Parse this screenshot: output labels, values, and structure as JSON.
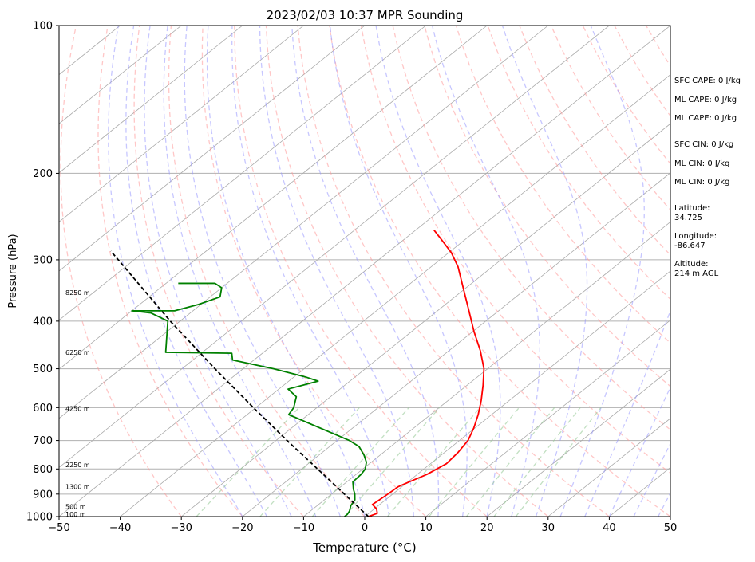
{
  "chart_data": {
    "type": "skew-t log-p sounding",
    "title": "2023/02/03 10:37 MPR Sounding",
    "xlabel": "Temperature (°C)",
    "ylabel": "Pressure (hPa)",
    "xlim": [
      -50,
      50
    ],
    "ylim": [
      1000,
      100
    ],
    "y_scale": "log",
    "x_ticks": [
      "−50",
      "−40",
      "−30",
      "−20",
      "−10",
      "0",
      "10",
      "20",
      "30",
      "40",
      "50"
    ],
    "x_tick_values": [
      -50,
      -40,
      -30,
      -20,
      -10,
      0,
      10,
      20,
      30,
      40,
      50
    ],
    "y_ticks": [
      "100",
      "200",
      "300",
      "400",
      "500",
      "600",
      "700",
      "800",
      "900",
      "1000"
    ],
    "y_tick_values": [
      100,
      200,
      300,
      400,
      500,
      600,
      700,
      800,
      900,
      1000
    ],
    "grid": "horizontal pressure lines plus skewed isotherms",
    "colors": {
      "temperature": "#ff0000",
      "dewpoint": "#008000",
      "parcel": "#000000",
      "dry_adiabats": "#ff9999",
      "moist_adiabats": "#9999ff",
      "mixing_ratio": "#99cc99",
      "isotherms": "#aaaaaa"
    },
    "series": [
      {
        "id": "temperature",
        "points": [
          {
            "p": 1000,
            "t": 0.6
          },
          {
            "p": 985,
            "t": 1.4
          },
          {
            "p": 965,
            "t": 0.4
          },
          {
            "p": 945,
            "t": -1.2
          },
          {
            "p": 925,
            "t": -1.0
          },
          {
            "p": 900,
            "t": -0.8
          },
          {
            "p": 870,
            "t": -0.6
          },
          {
            "p": 850,
            "t": 0.2
          },
          {
            "p": 820,
            "t": 1.6
          },
          {
            "p": 780,
            "t": 2.6
          },
          {
            "p": 740,
            "t": 2.2
          },
          {
            "p": 700,
            "t": 1.4
          },
          {
            "p": 660,
            "t": -0.2
          },
          {
            "p": 620,
            "t": -2.2
          },
          {
            "p": 580,
            "t": -4.6
          },
          {
            "p": 540,
            "t": -7.4
          },
          {
            "p": 500,
            "t": -10.6
          },
          {
            "p": 460,
            "t": -14.8
          },
          {
            "p": 420,
            "t": -19.8
          },
          {
            "p": 380,
            "t": -25.0
          },
          {
            "p": 340,
            "t": -30.8
          },
          {
            "p": 310,
            "t": -35.6
          },
          {
            "p": 290,
            "t": -39.6
          },
          {
            "p": 270,
            "t": -44.6
          },
          {
            "p": 261,
            "t": -47.0
          }
        ]
      },
      {
        "id": "dewpoint",
        "points": [
          {
            "p": 1000,
            "t": -3.3
          },
          {
            "p": 990,
            "t": -3.3
          },
          {
            "p": 975,
            "t": -3.6
          },
          {
            "p": 950,
            "t": -4.5
          },
          {
            "p": 925,
            "t": -5.0
          },
          {
            "p": 900,
            "t": -6.2
          },
          {
            "p": 880,
            "t": -7.4
          },
          {
            "p": 850,
            "t": -9.0
          },
          {
            "p": 820,
            "t": -9.2
          },
          {
            "p": 800,
            "t": -9.6
          },
          {
            "p": 775,
            "t": -10.8
          },
          {
            "p": 750,
            "t": -12.6
          },
          {
            "p": 720,
            "t": -15.2
          },
          {
            "p": 700,
            "t": -18.0
          },
          {
            "p": 620,
            "t": -33.2
          },
          {
            "p": 600,
            "t": -33.8
          },
          {
            "p": 570,
            "t": -35.6
          },
          {
            "p": 550,
            "t": -38.5
          },
          {
            "p": 530,
            "t": -35.2
          },
          {
            "p": 520,
            "t": -38.0
          },
          {
            "p": 500,
            "t": -45.0
          },
          {
            "p": 480,
            "t": -53.5
          },
          {
            "p": 465,
            "t": -55.0
          },
          {
            "p": 463,
            "t": -66.0
          },
          {
            "p": 400,
            "t": -72.0
          },
          {
            "p": 385,
            "t": -76.4
          },
          {
            "p": 381,
            "t": -80.0
          },
          {
            "p": 381,
            "t": -73.0
          },
          {
            "p": 370,
            "t": -70.4
          },
          {
            "p": 357,
            "t": -68.4
          },
          {
            "p": 342,
            "t": -70.0
          },
          {
            "p": 335,
            "t": -72.0
          },
          {
            "p": 335,
            "t": -78.0
          }
        ]
      },
      {
        "id": "parcel",
        "points": [
          {
            "p": 1000,
            "t": 0.6
          },
          {
            "p": 900,
            "t": -7.9
          },
          {
            "p": 800,
            "t": -17.4
          },
          {
            "p": 700,
            "t": -28.2
          },
          {
            "p": 600,
            "t": -40.4
          },
          {
            "p": 500,
            "t": -54.6
          },
          {
            "p": 400,
            "t": -71.6
          },
          {
            "p": 300,
            "t": -92.6
          },
          {
            "p": 288,
            "t": -95.6
          }
        ]
      }
    ],
    "height_labels": [
      {
        "p": 350,
        "text": "8250 m"
      },
      {
        "p": 463,
        "text": "6250 m"
      },
      {
        "p": 603,
        "text": "4250 m"
      },
      {
        "p": 785,
        "text": "2250 m"
      },
      {
        "p": 870,
        "text": "1300 m"
      },
      {
        "p": 955,
        "text": "500 m"
      },
      {
        "p": 988,
        "text": "100 m"
      }
    ],
    "annotations": [
      "SFC CAPE: 0 J/kg",
      "ML CAPE: 0 J/kg",
      "ML CAPE: 0 J/kg",
      "SFC CIN: 0 J/kg",
      "ML CIN: 0 J/kg",
      "ML CIN: 0 J/kg",
      "Latitude:",
      "34.725",
      "Longitude:",
      "-86.647",
      "Altitude:",
      "214 m AGL"
    ]
  }
}
